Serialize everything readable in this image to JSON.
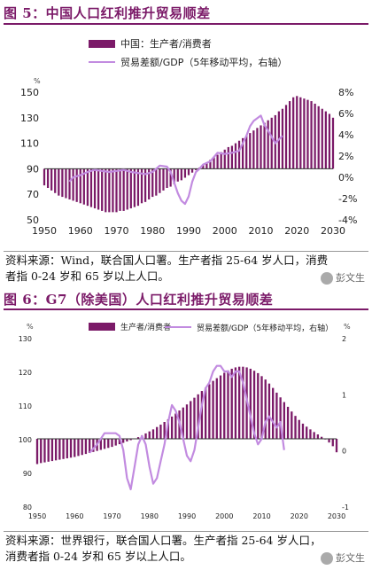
{
  "figure5": {
    "title": "图 5：中国人口红利推升贸易顺差",
    "caption_line1": "资料来源：Wind，联合国人口署。生产者指 25-64 岁人口，消费",
    "caption_line2": "者指 0-24 岁和 65 岁以上人口。"
  },
  "figure6": {
    "title": "图 6：G7（除美国）人口红利推升贸易顺差",
    "caption_line1": "资料来源：世界银行，联合国人口署。生产者指 25-64 岁人口，",
    "caption_line2": "消费者指 0-24 岁和 65 岁以上人口。"
  },
  "watermark": {
    "text": "彭文生",
    "icon": "wechat-logo-icon"
  },
  "chart_data": [
    {
      "type": "bar",
      "legend": [
        "中国：生产者/消费者",
        "贸易差额/GDP（5年移动平均，右轴）"
      ],
      "left_unit": "%",
      "right_unit": "",
      "ylim": [
        50,
        150
      ],
      "yticks": [
        50,
        70,
        90,
        110,
        130,
        150
      ],
      "y2lim": [
        -4,
        8
      ],
      "y2ticks": [
        "-4%",
        "-2%",
        "0%",
        "2%",
        "4%",
        "6%",
        "8%"
      ],
      "x_ticks": [
        1950,
        1960,
        1970,
        1980,
        1990,
        2000,
        2010,
        2020,
        2030
      ],
      "xlim": [
        1950,
        2030
      ],
      "bar_base": 90,
      "bar_year_start": 1950,
      "series": [
        {
          "name": "中国：生产者/消费者",
          "kind": "bar",
          "color": "#7b1a68",
          "values": [
            77,
            75,
            73,
            71,
            69,
            68,
            67,
            66,
            65,
            64,
            63,
            62,
            61,
            60,
            59,
            58,
            57,
            56,
            56,
            56,
            56,
            57,
            57,
            58,
            59,
            60,
            61,
            63,
            64,
            66,
            68,
            69,
            71,
            73,
            75,
            76,
            78,
            80,
            81,
            83,
            85,
            87,
            89,
            91,
            93,
            95,
            97,
            99,
            101,
            103,
            105,
            107,
            108,
            110,
            112,
            114,
            116,
            118,
            120,
            122,
            124,
            126,
            128,
            130,
            132,
            135,
            137,
            140,
            143,
            146,
            147,
            146,
            145,
            144,
            143,
            141,
            139,
            137,
            135,
            133,
            130
          ]
        },
        {
          "name": "贸易差额/GDP（5年移动平均，右轴）",
          "kind": "line",
          "axis": "right",
          "color": "#c28be0",
          "x": [
            1957,
            1958,
            1960,
            1962,
            1964,
            1966,
            1968,
            1970,
            1972,
            1974,
            1976,
            1978,
            1980,
            1982,
            1984,
            1985,
            1986,
            1987,
            1988,
            1989,
            1990,
            1991,
            1992,
            1993,
            1994,
            1996,
            1998,
            2000,
            2002,
            2004,
            2006,
            2007,
            2008,
            2010,
            2011,
            2012,
            2014,
            2016
          ],
          "y": [
            -0.4,
            0.0,
            0.2,
            0.5,
            0.7,
            0.6,
            0.5,
            0.6,
            0.7,
            0.5,
            0.4,
            0.3,
            0.5,
            1.1,
            1.0,
            0.5,
            -0.5,
            -1.5,
            -2.2,
            -2.5,
            -1.8,
            -0.4,
            0.5,
            0.8,
            1.2,
            1.5,
            2.3,
            2.2,
            2.3,
            2.5,
            3.9,
            4.8,
            5.3,
            5.8,
            4.9,
            4.4,
            3.2,
            3.9
          ]
        }
      ]
    },
    {
      "type": "bar",
      "legend": [
        "生产者/消费者",
        "贸易差额/GDP（5年移动平均，右轴）"
      ],
      "left_unit": "%",
      "right_unit": "%",
      "ylim": [
        80,
        130
      ],
      "yticks": [
        80,
        90,
        100,
        110,
        120,
        130
      ],
      "y2lim": [
        -1,
        2
      ],
      "y2ticks": [
        "-1",
        "0",
        "1",
        "2"
      ],
      "x_ticks": [
        1950,
        1960,
        1970,
        1980,
        1990,
        2000,
        2010,
        2020,
        2030
      ],
      "xlim": [
        1950,
        2030
      ],
      "bar_base": 100,
      "bar_year_start": 1950,
      "series": [
        {
          "name": "生产者/消费者",
          "kind": "bar",
          "color": "#7b1a68",
          "values": [
            92.5,
            92.8,
            93.0,
            93.2,
            93.4,
            93.6,
            93.8,
            94.0,
            94.2,
            94.4,
            94.6,
            94.9,
            95.2,
            95.5,
            95.8,
            96.1,
            96.4,
            96.7,
            97.0,
            97.3,
            97.6,
            98.0,
            98.4,
            98.8,
            99.2,
            99.6,
            100.0,
            100.5,
            101.0,
            101.6,
            102.2,
            102.8,
            103.5,
            104.2,
            105.0,
            105.8,
            106.6,
            107.5,
            108.4,
            109.3,
            110.2,
            111.2,
            112.2,
            113.2,
            114.2,
            115.2,
            116.2,
            117.2,
            118.0,
            118.8,
            119.6,
            120.3,
            120.8,
            121.2,
            121.4,
            121.4,
            121.2,
            120.8,
            120.2,
            119.5,
            118.6,
            117.6,
            116.4,
            115.1,
            113.7,
            112.3,
            110.9,
            109.5,
            108.1,
            106.8,
            105.6,
            104.5,
            103.6,
            102.8,
            102.0,
            101.3,
            100.6,
            99.8,
            98.9,
            97.8,
            96.0
          ]
        },
        {
          "name": "贸易差额/GDP（5年移动平均，右轴）",
          "kind": "line",
          "axis": "right",
          "color": "#c28be0",
          "x": [
            1964,
            1966,
            1968,
            1970,
            1971,
            1972,
            1973,
            1974,
            1975,
            1976,
            1977,
            1978,
            1979,
            1980,
            1981,
            1982,
            1983,
            1984,
            1985,
            1986,
            1987,
            1988,
            1989,
            1990,
            1991,
            1992,
            1993,
            1994,
            1995,
            1996,
            1997,
            1998,
            1999,
            2000,
            2001,
            2002,
            2003,
            2004,
            2005,
            2006,
            2007,
            2008,
            2009,
            2010,
            2011,
            2012,
            2013,
            2014,
            2015,
            2016
          ],
          "y": [
            -0.05,
            0.1,
            0.3,
            0.3,
            0.3,
            0.25,
            0.0,
            -0.5,
            -0.7,
            -0.3,
            0.1,
            0.25,
            0.1,
            -0.3,
            -0.6,
            -0.5,
            -0.2,
            0.1,
            0.5,
            0.8,
            0.7,
            0.5,
            0.2,
            -0.1,
            -0.2,
            0.0,
            0.4,
            0.8,
            1.1,
            1.2,
            1.4,
            1.5,
            1.5,
            1.4,
            1.4,
            1.3,
            1.4,
            1.4,
            1.2,
            0.9,
            0.6,
            0.3,
            0.1,
            0.2,
            0.5,
            0.6,
            0.5,
            0.4,
            0.5,
            0.0
          ]
        }
      ]
    }
  ]
}
